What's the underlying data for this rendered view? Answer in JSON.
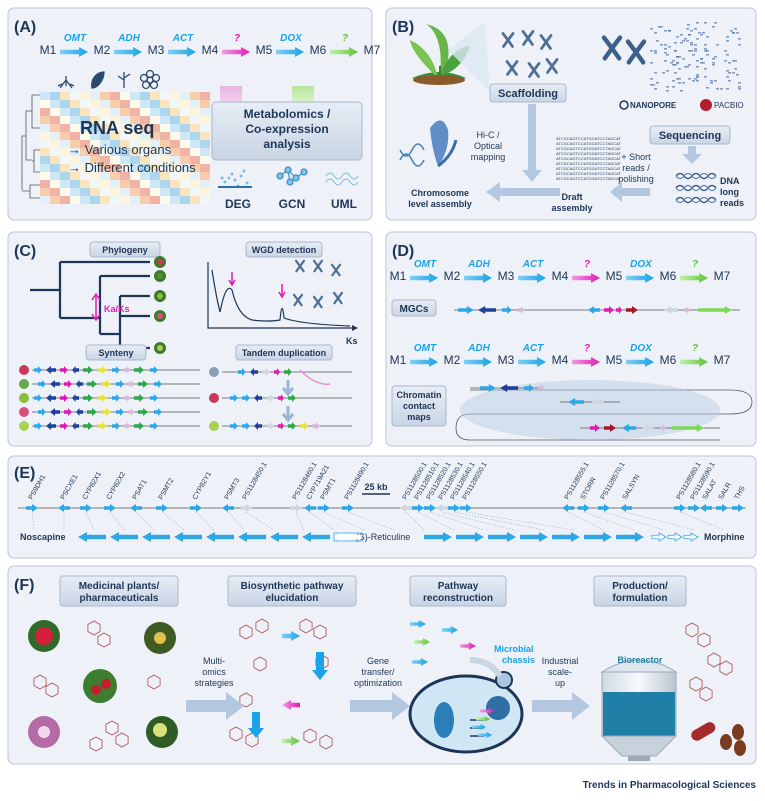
{
  "panels": {
    "A": {
      "letter": "(A)",
      "pathway": {
        "metabolites": [
          "M1",
          "M2",
          "M3",
          "M4",
          "M5",
          "M6",
          "M7"
        ],
        "enzymes": [
          "OMT",
          "ADH",
          "ACT",
          "?",
          "DOX",
          "?"
        ]
      },
      "rnaseq_title": "RNA seq",
      "rnaseq_line1": "→ Various organs",
      "rnaseq_line2": "→ Different conditions",
      "metabolomics_line1": "Metabolomics /",
      "metabolomics_line2": "Co-expression",
      "metabolomics_line3": "analysis",
      "methods": [
        "DEG",
        "GCN",
        "UML"
      ]
    },
    "B": {
      "letter": "(B)",
      "scaffolding": "Scaffolding",
      "hic_line1": "Hi-C /",
      "hic_line2": "Optical",
      "hic_line3": "mapping",
      "sequencing": "Sequencing",
      "nanopore": "NANOPORE",
      "pacbio": "PACBIO",
      "short_line1": "+ Short",
      "short_line2": "reads /",
      "short_line3": "polishing",
      "dna_line1": "DNA",
      "dna_line2": "long",
      "dna_line3": "reads",
      "draft_line1": "Draft",
      "draft_line2": "assembly",
      "chrom_line1": "Chromosome",
      "chrom_line2": "level assembly"
    },
    "C": {
      "letter": "(C)",
      "phylogeny": "Phylogeny",
      "kaks": "Ka/Ks",
      "wgd": "WGD detection",
      "ks": "Ks",
      "synteny": "Synteny",
      "tandem": "Tandem duplication"
    },
    "D": {
      "letter": "(D)",
      "metabolites": [
        "M1",
        "M2",
        "M3",
        "M4",
        "M5",
        "M6",
        "M7"
      ],
      "enzymes": [
        "OMT",
        "ADH",
        "ACT",
        "?",
        "DOX",
        "?"
      ],
      "mgcs": "MGCs",
      "chromatin_line1": "Chromatin",
      "chromatin_line2": "contact",
      "chromatin_line3": "maps"
    },
    "E": {
      "letter": "(E)",
      "genes": [
        "PS9DH1",
        "PSCXE1",
        "CYP82X1",
        "CYP82X2",
        "PSAT1",
        "PSMT2",
        "CYP82Y1",
        "PSMT3",
        "PS1128450.1",
        "PS1128460.1",
        "CYP719A21",
        "PSMT1",
        "PS1128490.1",
        "PS1128500.1",
        "PS1128510.1",
        "PS1128520.1",
        "PS1128530.1",
        "PS1128540.1",
        "PS1128550.1",
        "PS1128555.1",
        "STORR",
        "PS1128570.1",
        "SALSYN",
        "PS1128580.1",
        "PS1128590.1",
        "SALAT",
        "SALR",
        "THS"
      ],
      "scale": "25 kb",
      "noscapine": "Noscapine",
      "reticuline": "(S)-Reticuline",
      "morphine": "Morphine"
    },
    "F": {
      "letter": "(F)",
      "box1_line1": "Medicinal plants/",
      "box1_line2": "pharmaceuticals",
      "box2_line1": "Biosynthetic pathway",
      "box2_line2": "elucidation",
      "box3_line1": "Pathway",
      "box3_line2": "reconstruction",
      "box4_line1": "Production/",
      "box4_line2": "formulation",
      "arrow1_line1": "Multi-",
      "arrow1_line2": "omics",
      "arrow1_line3": "strategies",
      "arrow2_line1": "Gene",
      "arrow2_line2": "transfer/",
      "arrow2_line3": "optimization",
      "arrow3_line1": "Industrial",
      "arrow3_line2": "scale-",
      "arrow3_line3": "up",
      "chassis_line1": "Microbial",
      "chassis_line2": "chassis",
      "bioreactor": "Bioreactor"
    }
  },
  "credit": "Trends in Pharmacological Sciences",
  "colors": {
    "panel_bg": "#eef2f8",
    "panel_border": "#b9c6d8",
    "arrow_blue": "#1aa3e8",
    "arrow_pink": "#e01bb4",
    "arrow_green": "#5ec43a",
    "navy": "#1d3557"
  }
}
